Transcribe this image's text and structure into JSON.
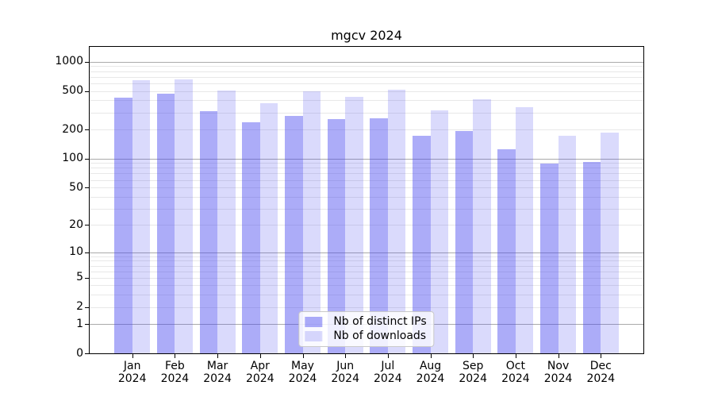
{
  "chart_data": {
    "type": "bar",
    "title": "mgcv 2024",
    "categories": [
      "Jan",
      "Feb",
      "Mar",
      "Apr",
      "May",
      "Jun",
      "Jul",
      "Aug",
      "Sep",
      "Oct",
      "Nov",
      "Dec"
    ],
    "x_tick_year": "2024",
    "series": [
      {
        "name": "Nb of distinct IPs",
        "color": "rgba(70,70,240,0.45)",
        "values": [
          425,
          470,
          310,
          237,
          278,
          255,
          260,
          172,
          193,
          126,
          89,
          93
        ]
      },
      {
        "name": "Nb of downloads",
        "color": "rgba(70,70,240,0.20)",
        "values": [
          640,
          655,
          510,
          372,
          500,
          432,
          515,
          315,
          410,
          340,
          173,
          185
        ]
      }
    ],
    "yscale": "log1p",
    "ylim": [
      0,
      1423
    ],
    "yticks": [
      0,
      1,
      2,
      5,
      10,
      20,
      50,
      100,
      200,
      500,
      1000
    ],
    "grid": {
      "major_color": "#aaaaaa",
      "minor_color": "#e8e8e8",
      "minor_on": true
    },
    "legend_position": "lower center",
    "spine_color": "#000000",
    "xlabel": "",
    "ylabel": ""
  }
}
